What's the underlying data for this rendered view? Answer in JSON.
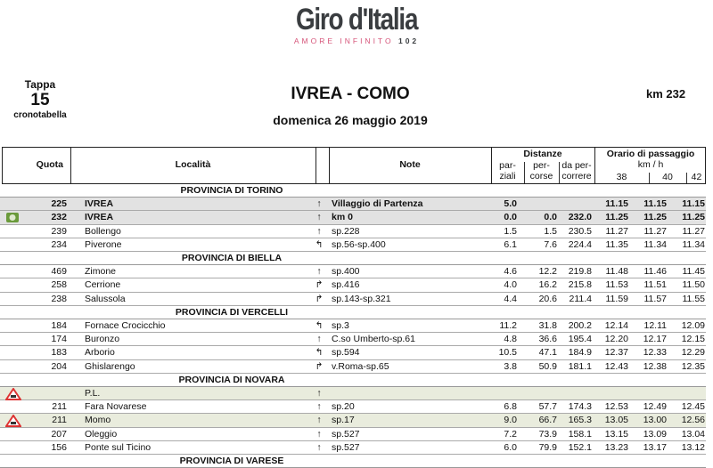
{
  "logo": {
    "name": "Giro d'Italia",
    "tagline": "AMORE INFINITO",
    "edition": "102"
  },
  "stage": {
    "label": "Tappa",
    "number": "15",
    "subtitle": "cronotabella",
    "title": "IVREA - COMO",
    "date": "domenica 26 maggio 2019",
    "distance": "km 232"
  },
  "headers": {
    "quota": "Quota",
    "localita": "Località",
    "note": "Note",
    "distanze": "Distanze",
    "parziali_1": "par-",
    "parziali_2": "ziali",
    "percorse_1": "per-",
    "percorse_2": "corse",
    "dapercorrere_1": "da per-",
    "dapercorrere_2": "correre",
    "orario": "Orario di passaggio",
    "kmh": "km / h",
    "speeds": [
      "38",
      "40",
      "42"
    ]
  },
  "rows": [
    {
      "province": "PROVINCIA DI TORINO"
    },
    {
      "quota": "225",
      "loc": "IVREA",
      "arrow": "up",
      "note": "Villaggio di Partenza",
      "parz": "5.0",
      "perc": "",
      "dap": "",
      "t": [
        "11.15",
        "11.15",
        "11.15"
      ],
      "style": "gray",
      "bold": true
    },
    {
      "icon": "start-flag-icon",
      "quota": "232",
      "loc": "IVREA",
      "arrow": "up",
      "note": "km 0",
      "parz": "0.0",
      "perc": "0.0",
      "dap": "232.0",
      "t": [
        "11.25",
        "11.25",
        "11.25"
      ],
      "style": "gray",
      "bold": true
    },
    {
      "quota": "239",
      "loc": "Bollengo",
      "arrow": "up",
      "note": "sp.228",
      "parz": "1.5",
      "perc": "1.5",
      "dap": "230.5",
      "t": [
        "11.27",
        "11.27",
        "11.27"
      ]
    },
    {
      "quota": "234",
      "loc": "Piverone",
      "arrow": "left",
      "note": "sp.56-sp.400",
      "parz": "6.1",
      "perc": "7.6",
      "dap": "224.4",
      "t": [
        "11.35",
        "11.34",
        "11.34"
      ]
    },
    {
      "province": "PROVINCIA DI BIELLA"
    },
    {
      "quota": "469",
      "loc": "Zimone",
      "arrow": "up",
      "note": "sp.400",
      "parz": "4.6",
      "perc": "12.2",
      "dap": "219.8",
      "t": [
        "11.48",
        "11.46",
        "11.45"
      ]
    },
    {
      "quota": "258",
      "loc": "Cerrione",
      "arrow": "right",
      "note": "sp.416",
      "parz": "4.0",
      "perc": "16.2",
      "dap": "215.8",
      "t": [
        "11.53",
        "11.51",
        "11.50"
      ]
    },
    {
      "quota": "238",
      "loc": "Salussola",
      "arrow": "right",
      "note": "sp.143-sp.321",
      "parz": "4.4",
      "perc": "20.6",
      "dap": "211.4",
      "t": [
        "11.59",
        "11.57",
        "11.55"
      ]
    },
    {
      "province": "PROVINCIA DI VERCELLI"
    },
    {
      "quota": "184",
      "loc": "Fornace Crocicchio",
      "arrow": "left",
      "note": "sp.3",
      "parz": "11.2",
      "perc": "31.8",
      "dap": "200.2",
      "t": [
        "12.14",
        "12.11",
        "12.09"
      ]
    },
    {
      "quota": "174",
      "loc": "Buronzo",
      "arrow": "up",
      "note": "C.so Umberto-sp.61",
      "parz": "4.8",
      "perc": "36.6",
      "dap": "195.4",
      "t": [
        "12.20",
        "12.17",
        "12.15"
      ]
    },
    {
      "quota": "183",
      "loc": "Arborio",
      "arrow": "left",
      "note": "sp.594",
      "parz": "10.5",
      "perc": "47.1",
      "dap": "184.9",
      "t": [
        "12.37",
        "12.33",
        "12.29"
      ]
    },
    {
      "quota": "204",
      "loc": "Ghislarengo",
      "arrow": "right",
      "note": "v.Roma-sp.65",
      "parz": "3.8",
      "perc": "50.9",
      "dap": "181.1",
      "t": [
        "12.43",
        "12.38",
        "12.35"
      ]
    },
    {
      "province": "PROVINCIA DI NOVARA"
    },
    {
      "icon": "railway-crossing-icon",
      "quota": "",
      "loc": "P.L.",
      "arrow": "up",
      "note": "",
      "parz": "",
      "perc": "",
      "dap": "",
      "t": [
        "",
        "",
        ""
      ],
      "style": "green"
    },
    {
      "quota": "211",
      "loc": "Fara Novarese",
      "arrow": "up",
      "note": "sp.20",
      "parz": "6.8",
      "perc": "57.7",
      "dap": "174.3",
      "t": [
        "12.53",
        "12.49",
        "12.45"
      ]
    },
    {
      "icon": "railway-crossing-icon",
      "quota": "211",
      "loc": "Momo",
      "arrow": "up",
      "note": "sp.17",
      "parz": "9.0",
      "perc": "66.7",
      "dap": "165.3",
      "t": [
        "13.05",
        "13.00",
        "12.56"
      ],
      "style": "green"
    },
    {
      "quota": "207",
      "loc": "Oleggio",
      "arrow": "up",
      "note": "sp.527",
      "parz": "7.2",
      "perc": "73.9",
      "dap": "158.1",
      "t": [
        "13.15",
        "13.09",
        "13.04"
      ]
    },
    {
      "quota": "156",
      "loc": "Ponte sul Ticino",
      "arrow": "up",
      "note": "sp.527",
      "parz": "6.0",
      "perc": "79.9",
      "dap": "152.1",
      "t": [
        "13.23",
        "13.17",
        "13.12"
      ]
    },
    {
      "province": "PROVINCIA DI VARESE"
    }
  ],
  "colors": {
    "gray_row": "#e2e2e2",
    "green_row": "#e9ecdd",
    "logo_tagline": "#d6557a"
  }
}
